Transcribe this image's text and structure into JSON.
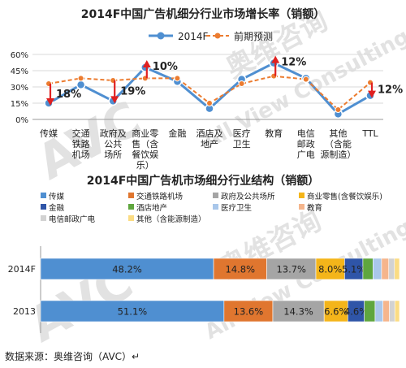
{
  "chart_data": [
    {
      "type": "line",
      "title": "2014F中国广告机细分行业市场增长率（销额）",
      "legend_placement": "top",
      "ylim": [
        0,
        60
      ],
      "yticks": [
        "0%",
        "15%",
        "30%",
        "45%",
        "60%"
      ],
      "categories": [
        [
          "传媒"
        ],
        [
          "交通",
          "铁路",
          "机场"
        ],
        [
          "政府及",
          "公共",
          "场所"
        ],
        [
          "商业零",
          "售（含",
          "餐饮娱",
          "乐）"
        ],
        [
          "金融"
        ],
        [
          "酒店及",
          "地产"
        ],
        [
          "医疗",
          "卫生"
        ],
        [
          "教育"
        ],
        [
          "电信",
          "邮政",
          "广电"
        ],
        [
          "其他",
          "（含能",
          "源制造）"
        ],
        [
          "TTL"
        ]
      ],
      "series": [
        {
          "name": "2014F",
          "values": [
            15,
            32,
            17,
            48,
            35,
            10,
            37,
            52,
            38,
            5,
            22
          ],
          "color": "#4f8fd1"
        },
        {
          "name": "前期预测",
          "values": [
            33,
            38,
            36,
            38,
            38,
            15,
            33,
            40,
            37,
            9,
            34
          ],
          "color": "#ec7c30"
        }
      ],
      "annotations": [
        {
          "category_index": 0,
          "text": "18%",
          "direction": "down"
        },
        {
          "category_index": 2,
          "text": "19%",
          "direction": "down"
        },
        {
          "category_index": 3,
          "text": "10%",
          "direction": "up"
        },
        {
          "category_index": 7,
          "text": "12%",
          "direction": "up"
        },
        {
          "category_index": 10,
          "text": "12%",
          "direction": "down"
        }
      ],
      "annotation_color": "#e02020"
    },
    {
      "type": "bar",
      "orientation": "horizontal",
      "stacked": true,
      "title": "2014F中国广告机市场细分行业结构（销额）",
      "legend_placement": "top",
      "categories": [
        "2014F",
        "2013"
      ],
      "series": [
        {
          "name": "传媒",
          "values": [
            48.2,
            51.1
          ],
          "labels": [
            "48.2%",
            "51.1%"
          ],
          "color": "#4f8fd1"
        },
        {
          "name": "交通铁路机场",
          "values": [
            14.8,
            13.6
          ],
          "labels": [
            "14.8%",
            "13.6%"
          ],
          "color": "#e0762f"
        },
        {
          "name": "政府及公共场所",
          "values": [
            13.7,
            14.3
          ],
          "labels": [
            "13.7%",
            "14.3%"
          ],
          "color": "#a5a5a5"
        },
        {
          "name": "商业零售(含餐饮娱乐)",
          "values": [
            8.0,
            6.6
          ],
          "labels": [
            "8.0%",
            "6.6%"
          ],
          "color": "#f4b51a"
        },
        {
          "name": "金融",
          "values": [
            5.1,
            4.6
          ],
          "labels": [
            "5.1%",
            "4.6%"
          ],
          "color": "#2f55a8"
        },
        {
          "name": "酒店地产",
          "values": [
            2.8,
            3.0
          ],
          "labels": [
            "",
            ""
          ],
          "color": "#5fa63e"
        },
        {
          "name": "医疗卫生",
          "values": [
            2.4,
            2.2
          ],
          "labels": [
            "",
            ""
          ],
          "color": "#a9c7ea"
        },
        {
          "name": "教育",
          "values": [
            2.0,
            1.8
          ],
          "labels": [
            "",
            ""
          ],
          "color": "#f5b58c"
        },
        {
          "name": "电信邮政广电",
          "values": [
            1.6,
            1.5
          ],
          "labels": [
            "",
            ""
          ],
          "color": "#d2d2d2"
        },
        {
          "name": "其他（含能源制造）",
          "values": [
            1.4,
            1.3
          ],
          "labels": [
            "",
            ""
          ],
          "color": "#fbdc83"
        }
      ]
    }
  ],
  "watermark": {
    "text": [
      "奥维咨询",
      "All View Consulting Ltd.",
      "AVC"
    ]
  },
  "footer": {
    "source": "数据来源：奥维咨询（AVC）↵"
  }
}
